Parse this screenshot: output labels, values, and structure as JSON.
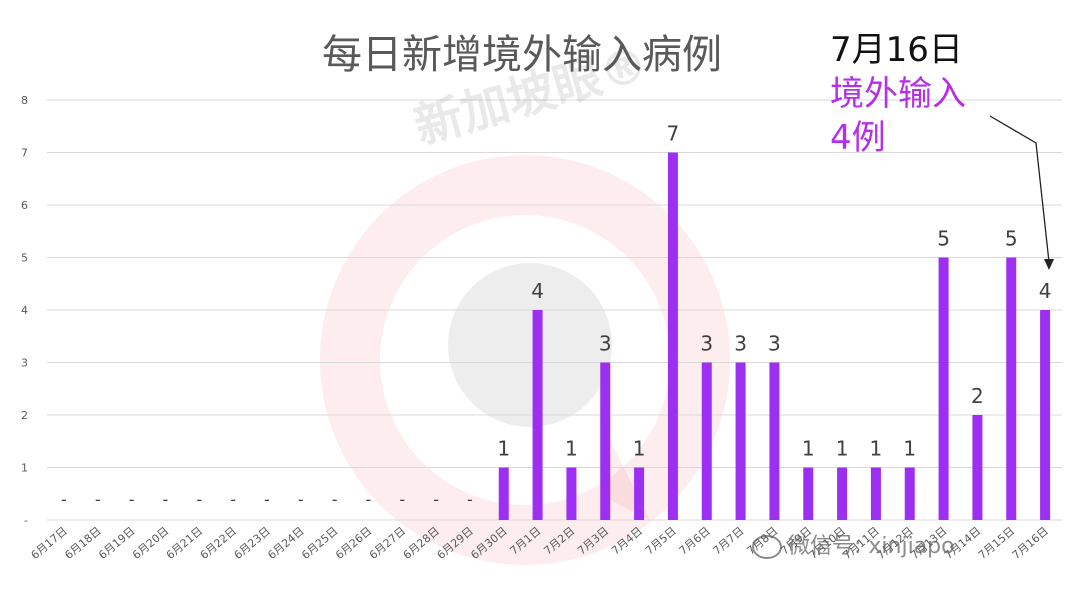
{
  "title": "每日新增境外输入病例",
  "watermark": {
    "text": "新加坡眼®",
    "account": "微信号: xinjiapo"
  },
  "annotation": {
    "date": "7月16日",
    "line1": "境外输入",
    "line2": "4例"
  },
  "colors": {
    "bar": "#9d2ff2",
    "callout": "#b62ee8",
    "grid": "#d9d9d9",
    "text": "#404040"
  },
  "chart_data": {
    "type": "bar",
    "title": "每日新增境外输入病例",
    "categories": [
      "6月17日",
      "6月18日",
      "6月19日",
      "6月20日",
      "6月21日",
      "6月22日",
      "6月23日",
      "6月24日",
      "6月25日",
      "6月26日",
      "6月27日",
      "6月28日",
      "6月29日",
      "6月30日",
      "7月1日",
      "7月2日",
      "7月3日",
      "7月4日",
      "7月5日",
      "7月6日",
      "7月7日",
      "7月8日",
      "7月9日",
      "7月10日",
      "7月11日",
      "7月12日",
      "7月13日",
      "7月14日",
      "7月15日",
      "7月16日"
    ],
    "values": [
      0,
      0,
      0,
      0,
      0,
      0,
      0,
      0,
      0,
      0,
      0,
      0,
      0,
      1,
      4,
      1,
      3,
      1,
      7,
      3,
      3,
      3,
      1,
      1,
      1,
      1,
      5,
      2,
      5,
      4
    ],
    "labels": [
      "-",
      "-",
      "-",
      "-",
      "-",
      "-",
      "-",
      "-",
      "-",
      "-",
      "-",
      "-",
      "-",
      "1",
      "4",
      "1",
      "3",
      "1",
      "7",
      "3",
      "3",
      "3",
      "1",
      "1",
      "1",
      "1",
      "5",
      "2",
      "5",
      "4"
    ],
    "yticks": [
      "-",
      "1",
      "2",
      "3",
      "4",
      "5",
      "6",
      "7",
      "8"
    ],
    "ylim": [
      0,
      8
    ],
    "grid": true,
    "legend": "none"
  }
}
